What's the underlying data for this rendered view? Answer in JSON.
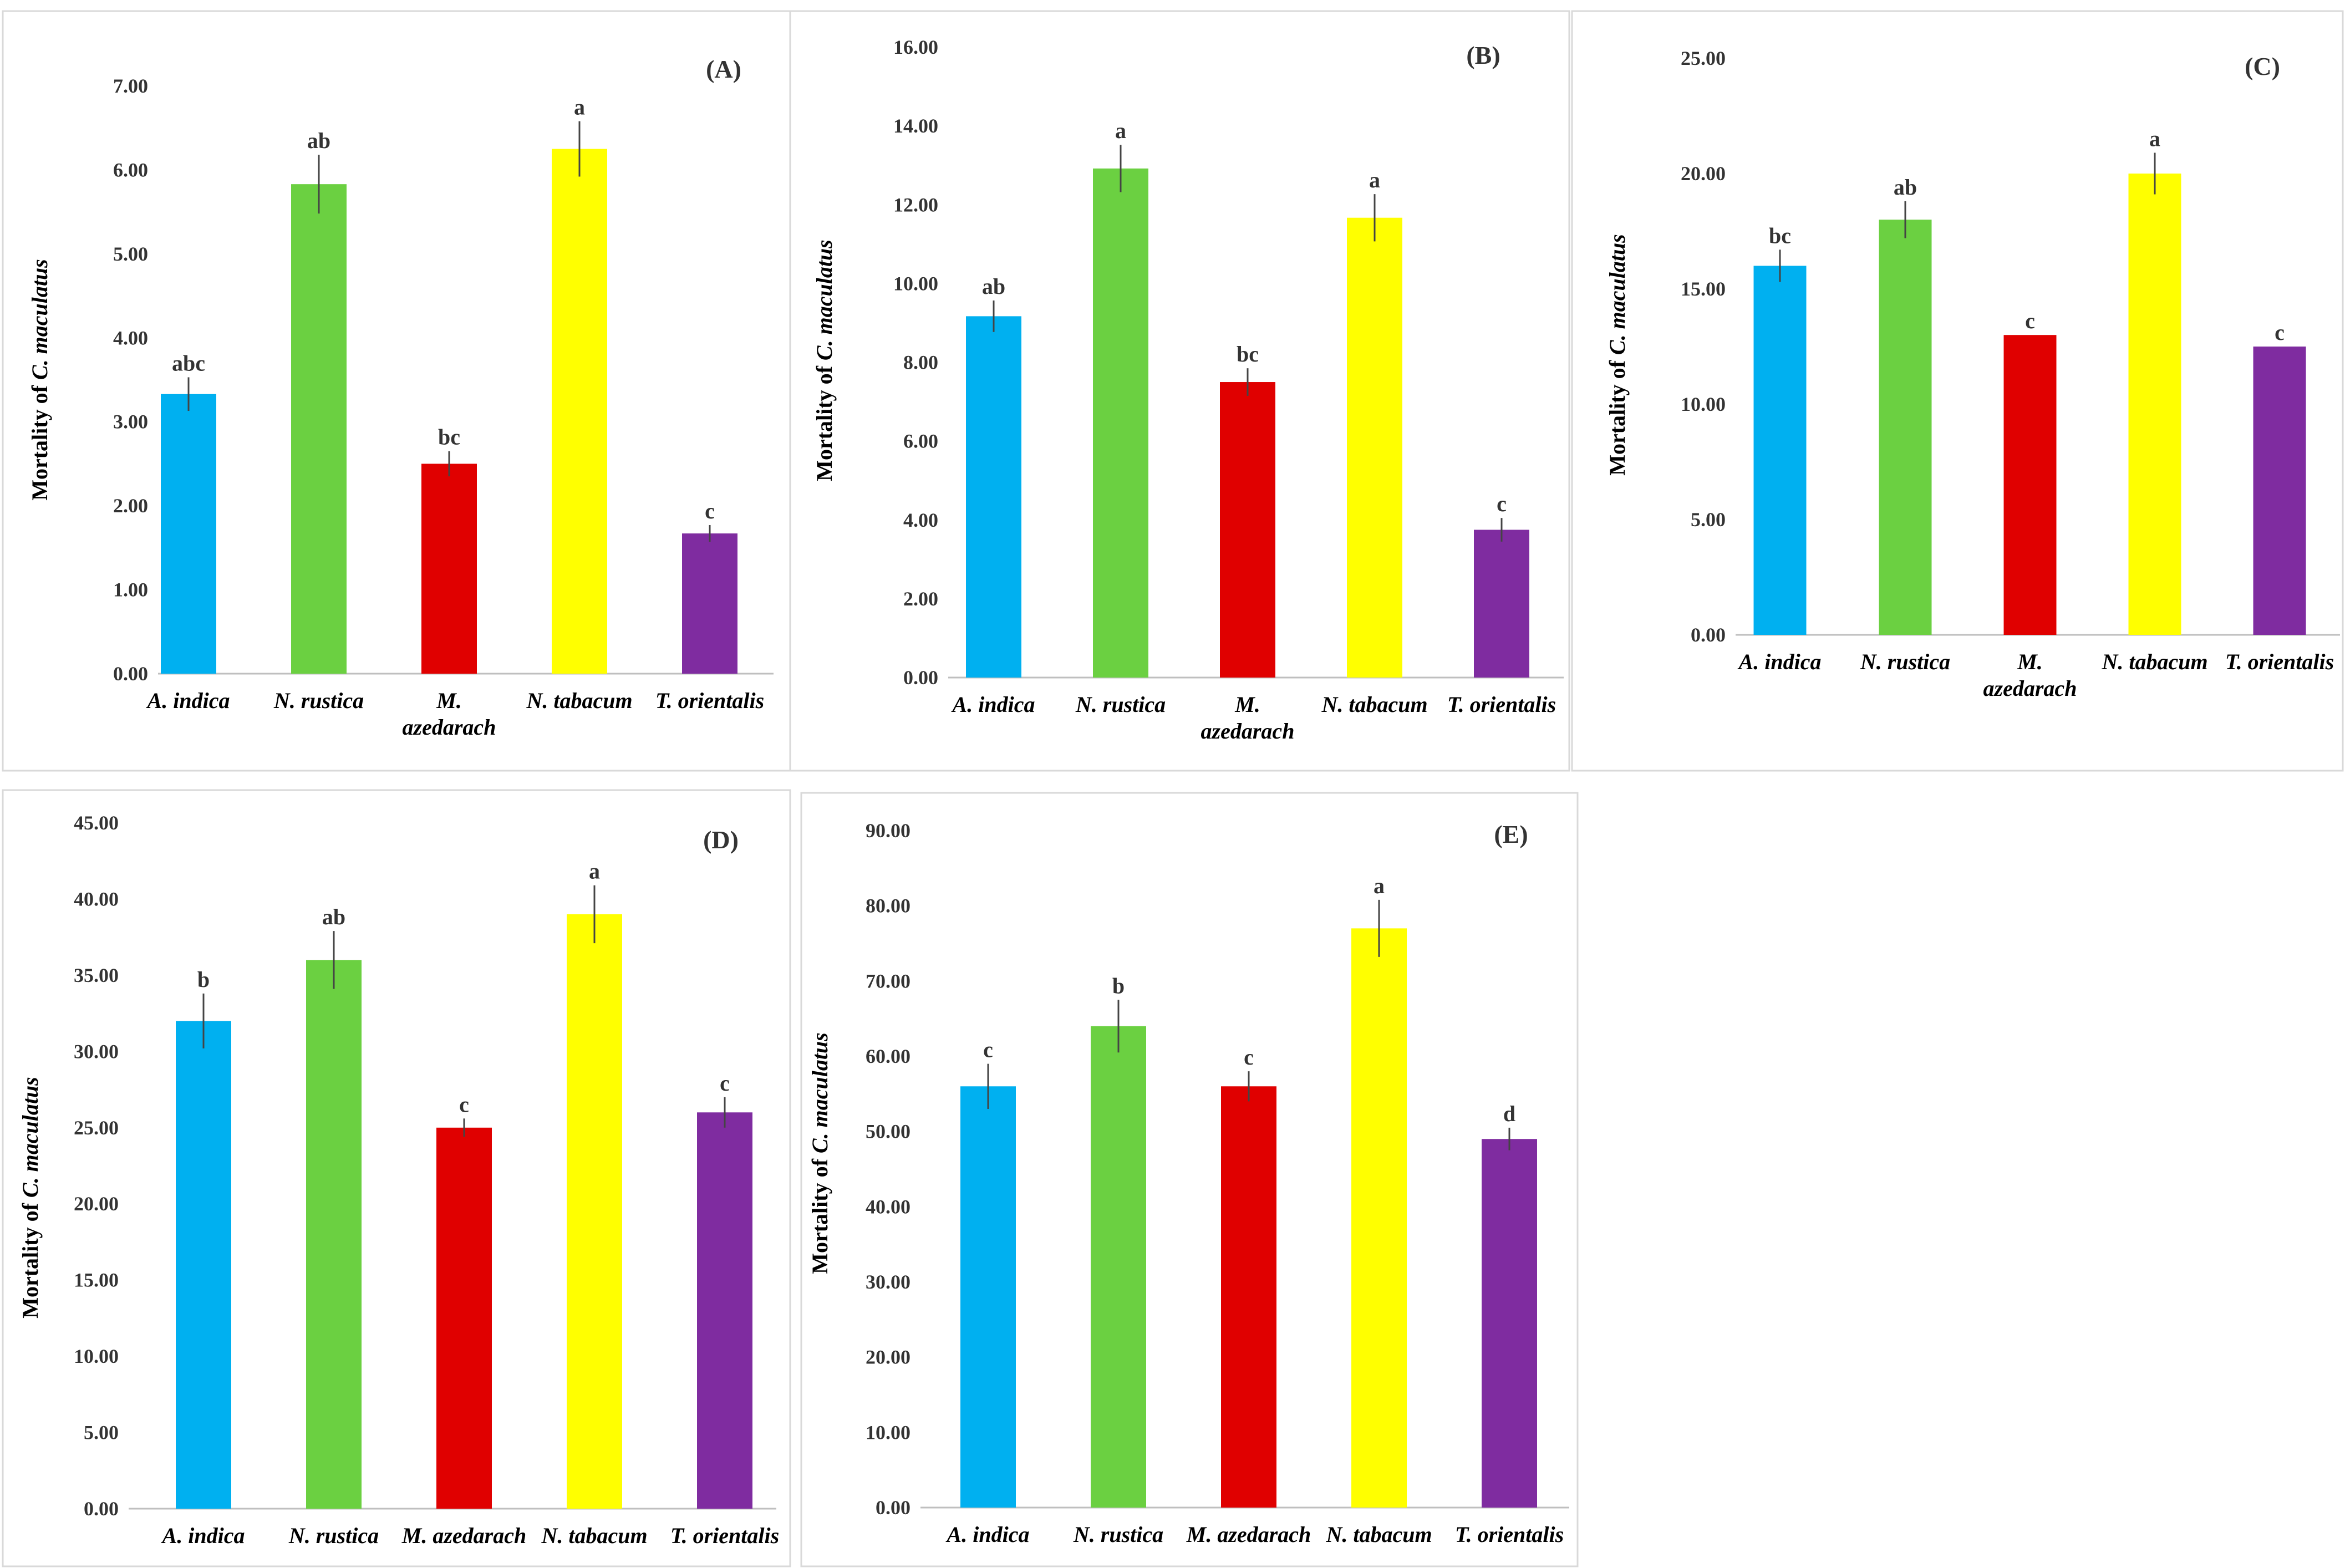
{
  "colors": {
    "A. indica": "#00b0f0",
    "N. rustica": "#6bd041",
    "M. azedarach": "#e00000",
    "N. tabacum": "#ffff00",
    "T. orientalis": "#7f2ca0"
  },
  "chart_data": [
    {
      "type": "bar",
      "panel": "(A)",
      "ylabel_prefix": "Mortality of ",
      "ylabel_species": "C. maculatus",
      "categories": [
        "A. indica",
        "N. rustica",
        "M. azedarach",
        "N. tabacum",
        "T. orientalis"
      ],
      "category_lines": [
        [
          "A. indica"
        ],
        [
          "N. rustica"
        ],
        [
          "M.",
          "azedarach"
        ],
        [
          "N. tabacum"
        ],
        [
          "T. orientalis"
        ]
      ],
      "values": [
        3.33,
        5.83,
        2.5,
        6.25,
        1.67
      ],
      "errors": [
        0.2,
        0.35,
        0.15,
        0.33,
        0.1
      ],
      "significance": [
        "abc",
        "ab",
        "bc",
        "a",
        "c"
      ],
      "ylim": [
        0,
        7
      ],
      "yticks": [
        "0.00",
        "1.00",
        "2.00",
        "3.00",
        "4.00",
        "5.00",
        "6.00",
        "7.00"
      ]
    },
    {
      "type": "bar",
      "panel": "(B)",
      "ylabel_prefix": "Mortality of ",
      "ylabel_species": "C. maculatus",
      "categories": [
        "A. indica",
        "N. rustica",
        "M. azedarach",
        "N. tabacum",
        "T. orientalis"
      ],
      "category_lines": [
        [
          "A. indica"
        ],
        [
          "N. rustica"
        ],
        [
          "M.",
          "azedarach"
        ],
        [
          "N. tabacum"
        ],
        [
          "T. orientalis"
        ]
      ],
      "values": [
        9.17,
        12.92,
        7.5,
        11.67,
        3.75
      ],
      "errors": [
        0.4,
        0.6,
        0.35,
        0.6,
        0.3
      ],
      "significance": [
        "ab",
        "a",
        "bc",
        "a",
        "c"
      ],
      "ylim": [
        0,
        16
      ],
      "yticks": [
        "0.00",
        "2.00",
        "4.00",
        "6.00",
        "8.00",
        "10.00",
        "12.00",
        "14.00",
        "16.00"
      ]
    },
    {
      "type": "bar",
      "panel": "(C)",
      "ylabel_prefix": "Mortality of ",
      "ylabel_species": "C. maculatus",
      "categories": [
        "A. indica",
        "N. rustica",
        "M. azedarach",
        "N. tabacum",
        "T. orientalis"
      ],
      "category_lines": [
        [
          "A. indica"
        ],
        [
          "N. rustica"
        ],
        [
          "M.",
          "azedarach"
        ],
        [
          "N. tabacum"
        ],
        [
          "T. orientalis"
        ]
      ],
      "values": [
        16.0,
        18.0,
        13.0,
        20.0,
        12.5
      ],
      "errors": [
        0.7,
        0.8,
        0.0,
        0.9,
        0.0
      ],
      "significance": [
        "bc",
        "ab",
        "c",
        "a",
        "c"
      ],
      "ylim": [
        0,
        25
      ],
      "yticks": [
        "0.00",
        "5.00",
        "10.00",
        "15.00",
        "20.00",
        "25.00"
      ]
    },
    {
      "type": "bar",
      "panel": "(D)",
      "ylabel_prefix": "Mortality of ",
      "ylabel_species": "C. maculatus",
      "categories": [
        "A. indica",
        "N. rustica",
        "M. azedarach",
        "N. tabacum",
        "T. orientalis"
      ],
      "category_lines": [
        [
          "A. indica"
        ],
        [
          "N. rustica"
        ],
        [
          "M. azedarach"
        ],
        [
          "N. tabacum"
        ],
        [
          "T. orientalis"
        ]
      ],
      "values": [
        32.0,
        36.0,
        25.0,
        39.0,
        26.0
      ],
      "errors": [
        1.8,
        1.9,
        0.6,
        1.9,
        1.0
      ],
      "significance": [
        "b",
        "ab",
        "c",
        "a",
        "c"
      ],
      "ylim": [
        0,
        45
      ],
      "yticks": [
        "0.00",
        "5.00",
        "10.00",
        "15.00",
        "20.00",
        "25.00",
        "30.00",
        "35.00",
        "40.00",
        "45.00"
      ]
    },
    {
      "type": "bar",
      "panel": "(E)",
      "ylabel_prefix": "Mortality of ",
      "ylabel_species": "C. maculatus",
      "categories": [
        "A. indica",
        "N. rustica",
        "M. azedarach",
        "N. tabacum",
        "T. orientalis"
      ],
      "category_lines": [
        [
          "A. indica"
        ],
        [
          "N. rustica"
        ],
        [
          "M. azedarach"
        ],
        [
          "N. tabacum"
        ],
        [
          "T. orientalis"
        ]
      ],
      "values": [
        56.0,
        64.0,
        56.0,
        77.0,
        49.0
      ],
      "errors": [
        3.0,
        3.5,
        2.0,
        3.8,
        1.5
      ],
      "significance": [
        "c",
        "b",
        "c",
        "a",
        "d"
      ],
      "ylim": [
        0,
        90
      ],
      "yticks": [
        "0.00",
        "10.00",
        "20.00",
        "30.00",
        "40.00",
        "50.00",
        "60.00",
        "70.00",
        "80.00",
        "90.00"
      ]
    }
  ]
}
